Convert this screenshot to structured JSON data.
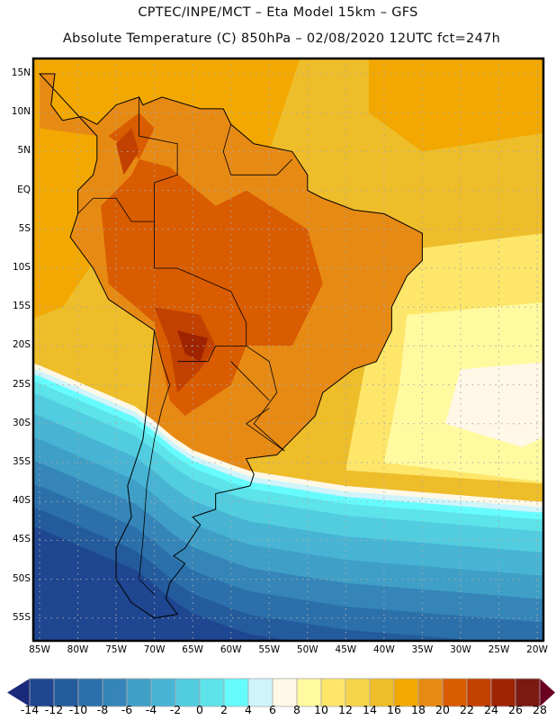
{
  "header": {
    "title_line1": "CPTEC/INPE/MCT –  Eta Model 15km – GFS",
    "title_line2": "Absolute Temperature (C) 850hPa – 02/08/2020 12UTC fct=247h"
  },
  "map": {
    "lat_labels": [
      "15N",
      "10N",
      "5N",
      "EQ",
      "5S",
      "10S",
      "15S",
      "20S",
      "25S",
      "30S",
      "35S",
      "40S",
      "45S",
      "50S",
      "55S"
    ],
    "lon_labels": [
      "85W",
      "80W",
      "75W",
      "70W",
      "65W",
      "60W",
      "55W",
      "50W",
      "45W",
      "40W",
      "35W",
      "30W",
      "25W",
      "20W"
    ]
  },
  "colorbar": {
    "labels": [
      "-14",
      "-12",
      "-10",
      "-8",
      "-6",
      "-4",
      "-2",
      "0",
      "2",
      "4",
      "6",
      "8",
      "10",
      "12",
      "14",
      "16",
      "18",
      "20",
      "22",
      "24",
      "26",
      "28"
    ],
    "colors": [
      "#1f4690",
      "#245b9c",
      "#2b70ab",
      "#3585b8",
      "#3f9fc6",
      "#48b4d4",
      "#52cde0",
      "#5de3ea",
      "#66fcfd",
      "#cff4fb",
      "#fff8e6",
      "#fffaa0",
      "#fde66a",
      "#f6d44a",
      "#eebd2a",
      "#f2a800",
      "#e78a14",
      "#d95c00",
      "#c24000",
      "#9e2300",
      "#7a1a10"
    ],
    "under_color": "#1a2a7a",
    "over_color": "#6a0020"
  }
}
